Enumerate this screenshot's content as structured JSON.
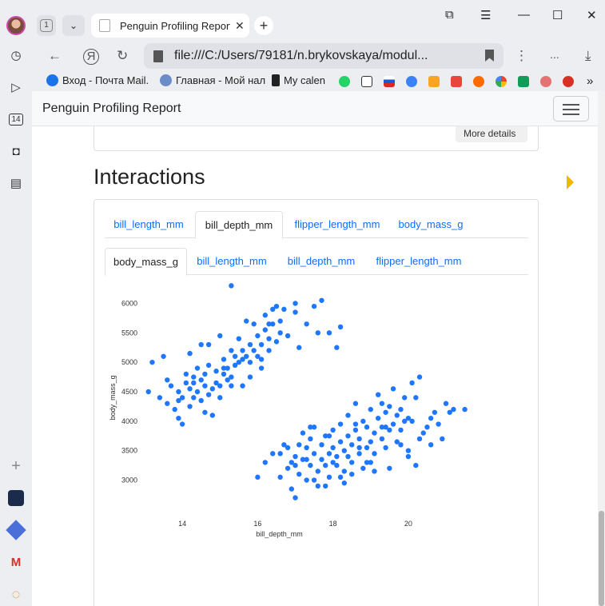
{
  "browser": {
    "tab_count": "1",
    "tab_title": "Penguin Profiling Report",
    "url": "file:///C:/Users/79181/n.brykovskaya/modul...",
    "bookmarks": [
      {
        "label": "Вход - Почта Mail."
      },
      {
        "label": "Главная - Мой нал"
      },
      {
        "label": "My calen"
      }
    ],
    "overflow_menu": "..."
  },
  "rail": {
    "calendar_badge": "14"
  },
  "navbar": {
    "brand": "Penguin Profiling Report"
  },
  "previous_card": {
    "button_label": "More details"
  },
  "section": {
    "heading": "Interactions"
  },
  "outer_tabs": [
    {
      "label": "bill_length_mm",
      "active": false
    },
    {
      "label": "bill_depth_mm",
      "active": true
    },
    {
      "label": "flipper_length_mm",
      "active": false
    },
    {
      "label": "body_mass_g",
      "active": false
    }
  ],
  "inner_tabs": [
    {
      "label": "body_mass_g",
      "active": true
    },
    {
      "label": "bill_length_mm",
      "active": false
    },
    {
      "label": "bill_depth_mm",
      "active": false
    },
    {
      "label": "flipper_length_mm",
      "active": false
    }
  ],
  "chart_data": {
    "type": "scatter",
    "xlabel": "bill_depth_mm",
    "ylabel": "body_mass_g",
    "xlim": [
      13,
      21.7
    ],
    "ylim": [
      2600,
      6400
    ],
    "xticks": [
      14,
      16,
      18,
      20
    ],
    "yticks": [
      3000,
      3500,
      4000,
      4500,
      5000,
      5500,
      6000
    ],
    "color": "#1f77ff",
    "series": [
      {
        "points": [
          [
            13.1,
            4500
          ],
          [
            13.2,
            5000
          ],
          [
            13.4,
            4400
          ],
          [
            13.5,
            5100
          ],
          [
            13.6,
            4700
          ],
          [
            13.6,
            4300
          ],
          [
            13.7,
            4600
          ],
          [
            13.8,
            4200
          ],
          [
            13.9,
            4500
          ],
          [
            13.9,
            4050
          ],
          [
            14.0,
            4400
          ],
          [
            14.0,
            3950
          ],
          [
            14.1,
            4800
          ],
          [
            14.1,
            4650
          ],
          [
            14.2,
            4550
          ],
          [
            14.2,
            4250
          ],
          [
            14.3,
            4750
          ],
          [
            14.3,
            4400
          ],
          [
            14.4,
            4900
          ],
          [
            14.4,
            4500
          ],
          [
            14.5,
            5300
          ],
          [
            14.5,
            4700
          ],
          [
            14.5,
            4350
          ],
          [
            14.6,
            4800
          ],
          [
            14.6,
            4600
          ],
          [
            14.7,
            5300
          ],
          [
            14.7,
            4950
          ],
          [
            14.7,
            4450
          ],
          [
            14.8,
            4550
          ],
          [
            14.8,
            4100
          ],
          [
            14.9,
            4650
          ],
          [
            14.9,
            4850
          ],
          [
            15.0,
            5450
          ],
          [
            15.0,
            4600
          ],
          [
            15.0,
            4400
          ],
          [
            15.1,
            4800
          ],
          [
            15.1,
            5050
          ],
          [
            15.2,
            4700
          ],
          [
            15.2,
            4900
          ],
          [
            15.3,
            4600
          ],
          [
            15.3,
            5200
          ],
          [
            15.3,
            4750
          ],
          [
            15.4,
            5100
          ],
          [
            15.4,
            4950
          ],
          [
            15.5,
            5000
          ],
          [
            15.5,
            5400
          ],
          [
            15.6,
            5200
          ],
          [
            15.6,
            4600
          ],
          [
            15.7,
            5700
          ],
          [
            15.7,
            5100
          ],
          [
            15.8,
            5300
          ],
          [
            15.8,
            5000
          ],
          [
            15.9,
            5650
          ],
          [
            15.9,
            5200
          ],
          [
            16.0,
            5100
          ],
          [
            16.0,
            5450
          ],
          [
            16.1,
            5050
          ],
          [
            16.1,
            5300
          ],
          [
            16.2,
            5550
          ],
          [
            16.2,
            5800
          ],
          [
            16.3,
            5400
          ],
          [
            16.3,
            5200
          ],
          [
            16.4,
            5650
          ],
          [
            16.4,
            5900
          ],
          [
            16.5,
            5350
          ],
          [
            16.5,
            5950
          ],
          [
            16.6,
            5500
          ],
          [
            16.6,
            5700
          ],
          [
            16.7,
            5900
          ],
          [
            16.8,
            5450
          ],
          [
            17.0,
            5850
          ],
          [
            17.0,
            6000
          ],
          [
            17.1,
            5250
          ],
          [
            17.3,
            5650
          ],
          [
            17.5,
            5950
          ],
          [
            17.6,
            5500
          ],
          [
            17.7,
            6050
          ],
          [
            17.9,
            5500
          ],
          [
            18.1,
            5250
          ],
          [
            18.2,
            5600
          ],
          [
            15.3,
            6300
          ],
          [
            14.2,
            5150
          ],
          [
            13.9,
            4350
          ],
          [
            14.6,
            4150
          ],
          [
            15.1,
            4900
          ],
          [
            15.8,
            4750
          ],
          [
            16.1,
            4900
          ],
          [
            14.3,
            4650
          ],
          [
            15.6,
            5050
          ],
          [
            16.3,
            5650
          ],
          [
            16.2,
            3300
          ],
          [
            16.4,
            3450
          ],
          [
            16.6,
            3050
          ],
          [
            16.7,
            3600
          ],
          [
            16.8,
            3200
          ],
          [
            16.9,
            2850
          ],
          [
            17.0,
            2700
          ],
          [
            17.0,
            3400
          ],
          [
            17.1,
            3100
          ],
          [
            17.1,
            3600
          ],
          [
            17.2,
            3350
          ],
          [
            17.2,
            3800
          ],
          [
            17.3,
            3000
          ],
          [
            17.3,
            3550
          ],
          [
            17.4,
            3250
          ],
          [
            17.4,
            3700
          ],
          [
            17.5,
            3900
          ],
          [
            17.5,
            3450
          ],
          [
            17.6,
            2900
          ],
          [
            17.6,
            3150
          ],
          [
            17.7,
            3350
          ],
          [
            17.7,
            3600
          ],
          [
            17.8,
            3750
          ],
          [
            17.8,
            3250
          ],
          [
            17.9,
            3450
          ],
          [
            17.9,
            3050
          ],
          [
            18.0,
            3550
          ],
          [
            18.0,
            3850
          ],
          [
            18.1,
            3250
          ],
          [
            18.1,
            3400
          ],
          [
            18.2,
            3650
          ],
          [
            18.2,
            3950
          ],
          [
            18.3,
            3150
          ],
          [
            18.3,
            3500
          ],
          [
            18.4,
            4100
          ],
          [
            18.4,
            3750
          ],
          [
            18.5,
            3300
          ],
          [
            18.5,
            3600
          ],
          [
            18.6,
            3850
          ],
          [
            18.6,
            4300
          ],
          [
            18.7,
            3450
          ],
          [
            18.7,
            3700
          ],
          [
            18.8,
            4000
          ],
          [
            18.8,
            3200
          ],
          [
            18.9,
            3550
          ],
          [
            18.9,
            3900
          ],
          [
            19.0,
            4200
          ],
          [
            19.0,
            3650
          ],
          [
            19.1,
            3450
          ],
          [
            19.1,
            3800
          ],
          [
            19.2,
            4050
          ],
          [
            19.2,
            4450
          ],
          [
            19.3,
            3700
          ],
          [
            19.3,
            3900
          ],
          [
            19.4,
            4150
          ],
          [
            19.4,
            3550
          ],
          [
            19.5,
            3850
          ],
          [
            19.5,
            4250
          ],
          [
            19.6,
            3950
          ],
          [
            19.6,
            4550
          ],
          [
            19.7,
            4100
          ],
          [
            19.7,
            3650
          ],
          [
            19.8,
            4200
          ],
          [
            19.8,
            3850
          ],
          [
            19.9,
            4400
          ],
          [
            19.9,
            4000
          ],
          [
            20.0,
            4050
          ],
          [
            20.0,
            3500
          ],
          [
            20.1,
            4650
          ],
          [
            20.1,
            4000
          ],
          [
            20.2,
            4400
          ],
          [
            20.3,
            4750
          ],
          [
            20.3,
            3700
          ],
          [
            20.5,
            3900
          ],
          [
            20.6,
            3600
          ],
          [
            20.7,
            4150
          ],
          [
            20.8,
            3950
          ],
          [
            21.1,
            4150
          ],
          [
            21.2,
            4200
          ],
          [
            21.5,
            4200
          ],
          [
            17.0,
            3250
          ],
          [
            17.5,
            3000
          ],
          [
            18.0,
            3300
          ],
          [
            18.5,
            3100
          ],
          [
            19.0,
            3300
          ],
          [
            16.9,
            3300
          ],
          [
            16.8,
            3550
          ],
          [
            17.3,
            3350
          ],
          [
            18.3,
            2950
          ],
          [
            19.5,
            3200
          ],
          [
            16.0,
            3050
          ],
          [
            16.6,
            3450
          ],
          [
            18.7,
            3550
          ],
          [
            18.9,
            3300
          ],
          [
            19.1,
            3150
          ],
          [
            20.0,
            3400
          ],
          [
            18.2,
            3050
          ],
          [
            17.8,
            2900
          ],
          [
            20.4,
            3800
          ],
          [
            20.9,
            3700
          ],
          [
            17.4,
            3900
          ],
          [
            17.9,
            3750
          ],
          [
            18.4,
            3400
          ],
          [
            19.4,
            3900
          ],
          [
            19.8,
            3600
          ],
          [
            20.6,
            4050
          ],
          [
            21.0,
            4300
          ],
          [
            20.2,
            3250
          ],
          [
            19.3,
            4300
          ],
          [
            18.6,
            3950
          ]
        ]
      }
    ]
  }
}
